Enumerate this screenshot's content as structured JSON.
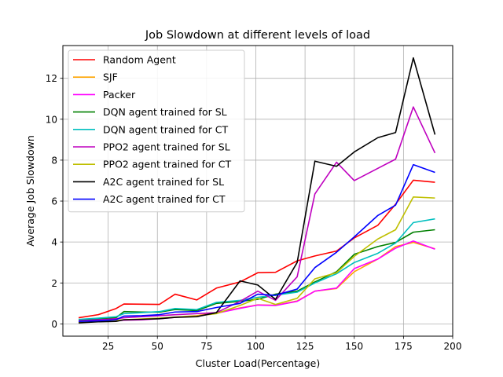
{
  "chart_data": {
    "type": "line",
    "title": "Job Slowdown at different levels of load",
    "xlabel": "Cluster Load(Percentage)",
    "ylabel": "Average Job Slowdown",
    "xlim": [
      2,
      200
    ],
    "ylim": [
      -0.6,
      13.6
    ],
    "xticks": [
      25,
      50,
      75,
      100,
      125,
      150,
      175,
      200
    ],
    "yticks": [
      0,
      2,
      4,
      6,
      8,
      10,
      12
    ],
    "grid": true,
    "legend_position": "upper-left",
    "x": [
      10,
      20,
      29,
      33,
      42,
      51,
      59,
      70,
      80,
      92,
      101,
      110,
      121,
      130,
      141,
      150,
      162,
      171,
      180,
      191
    ],
    "series": [
      {
        "name": "Random Agent",
        "color": "#ff0000",
        "values": [
          0.3,
          0.45,
          0.75,
          0.97,
          0.96,
          0.95,
          1.45,
          1.17,
          1.75,
          2.05,
          2.5,
          2.52,
          3.08,
          3.32,
          3.56,
          4.2,
          4.82,
          5.85,
          7.02,
          6.92
        ]
      },
      {
        "name": "SJF",
        "color": "#ffa500",
        "values": [
          0.12,
          0.14,
          0.17,
          0.2,
          0.22,
          0.27,
          0.33,
          0.4,
          0.55,
          0.78,
          0.93,
          0.91,
          1.12,
          1.6,
          1.73,
          2.55,
          3.17,
          3.78,
          3.98,
          3.67
        ]
      },
      {
        "name": "Packer",
        "color": "#ff00ff",
        "values": [
          0.1,
          0.12,
          0.15,
          0.18,
          0.2,
          0.25,
          0.32,
          0.38,
          0.52,
          0.76,
          0.92,
          0.9,
          1.1,
          1.6,
          1.75,
          2.7,
          3.17,
          3.7,
          4.05,
          3.65
        ]
      },
      {
        "name": "DQN agent trained for SL",
        "color": "#008000",
        "values": [
          0.2,
          0.25,
          0.3,
          0.6,
          0.58,
          0.57,
          0.7,
          0.65,
          1.0,
          1.1,
          1.2,
          1.45,
          1.6,
          2.05,
          2.55,
          3.4,
          3.78,
          3.98,
          4.48,
          4.6
        ]
      },
      {
        "name": "DQN agent trained for CT",
        "color": "#00bfbf",
        "values": [
          0.22,
          0.28,
          0.35,
          0.5,
          0.55,
          0.6,
          0.75,
          0.7,
          1.05,
          1.15,
          1.3,
          1.4,
          1.55,
          2.0,
          2.45,
          3.0,
          3.45,
          3.95,
          4.95,
          5.13
        ]
      },
      {
        "name": "PPO2 agent trained for SL",
        "color": "#bf00bf",
        "values": [
          0.15,
          0.2,
          0.25,
          0.3,
          0.35,
          0.4,
          0.45,
          0.5,
          0.55,
          1.1,
          1.6,
          1.15,
          2.3,
          6.35,
          7.9,
          7.0,
          7.6,
          8.05,
          10.6,
          8.35
        ]
      },
      {
        "name": "PPO2 agent trained for CT",
        "color": "#bfbf00",
        "values": [
          0.1,
          0.13,
          0.16,
          0.2,
          0.24,
          0.28,
          0.33,
          0.38,
          0.5,
          0.9,
          1.25,
          0.95,
          1.25,
          2.2,
          2.5,
          3.3,
          4.15,
          4.6,
          6.2,
          6.15
        ]
      },
      {
        "name": "A2C agent trained for SL",
        "color": "#000000",
        "values": [
          0.05,
          0.1,
          0.12,
          0.2,
          0.22,
          0.25,
          0.32,
          0.35,
          0.55,
          2.1,
          1.9,
          1.2,
          3.0,
          7.95,
          7.7,
          8.4,
          9.1,
          9.35,
          13.0,
          9.25
        ]
      },
      {
        "name": "A2C agent trained for CT",
        "color": "#0000ff",
        "values": [
          0.12,
          0.15,
          0.2,
          0.38,
          0.4,
          0.45,
          0.58,
          0.6,
          0.8,
          1.0,
          1.45,
          1.4,
          1.7,
          2.75,
          3.5,
          4.25,
          5.3,
          5.8,
          7.78,
          7.4
        ]
      }
    ]
  }
}
